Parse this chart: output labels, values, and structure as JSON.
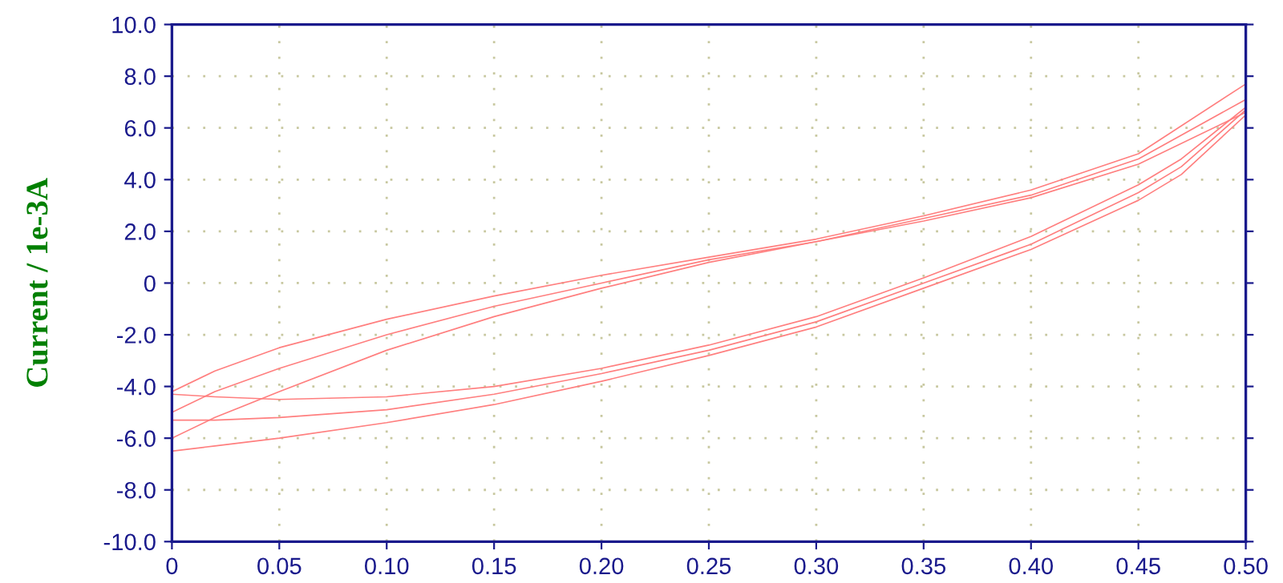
{
  "chart_data": {
    "type": "line",
    "ylabel": "Current / 1e-3A",
    "xlim": [
      0,
      0.5
    ],
    "ylim": [
      -10,
      10
    ],
    "xticks": [
      0,
      {
        "value": 0.05,
        "label": "0.05"
      },
      {
        "value": 0.1,
        "label": "0.10"
      },
      {
        "value": 0.15,
        "label": "0.15"
      },
      {
        "value": 0.2,
        "label": "0.20"
      },
      {
        "value": 0.25,
        "label": "0.25"
      },
      {
        "value": 0.3,
        "label": "0.30"
      },
      {
        "value": 0.35,
        "label": "0.35"
      },
      {
        "value": 0.4,
        "label": "0.40"
      },
      {
        "value": 0.45,
        "label": "0.45"
      },
      {
        "value": 0.5,
        "label": "0.50"
      }
    ],
    "yticks": [
      {
        "value": -10,
        "label": "-10.0"
      },
      {
        "value": -8,
        "label": "-8.0"
      },
      {
        "value": -6,
        "label": "-6.0"
      },
      {
        "value": -4,
        "label": "-4.0"
      },
      {
        "value": -2,
        "label": "-2.0"
      },
      0,
      {
        "value": 2,
        "label": "2.0"
      },
      {
        "value": 4,
        "label": "4.0"
      },
      {
        "value": 6,
        "label": "6.0"
      },
      {
        "value": 8,
        "label": "8.0"
      },
      {
        "value": 10,
        "label": "10.0"
      }
    ],
    "grid": true,
    "marker": "none",
    "line_style": "solid",
    "series": [
      {
        "color": "#ff7f7f",
        "x": [
          0,
          0.02,
          0.05,
          0.1,
          0.15,
          0.2,
          0.25,
          0.3,
          0.35,
          0.4,
          0.45,
          0.5,
          0.5,
          0.47,
          0.45,
          0.4,
          0.35,
          0.3,
          0.25,
          0.2,
          0.15,
          0.1,
          0.05,
          0.02,
          0
        ],
        "values": [
          -4.2,
          -3.4,
          -2.5,
          -1.4,
          -0.5,
          0.3,
          1.0,
          1.7,
          2.6,
          3.6,
          5.0,
          7.7,
          6.8,
          4.8,
          3.8,
          1.8,
          0.2,
          -1.3,
          -2.4,
          -3.3,
          -4.0,
          -4.4,
          -4.5,
          -4.4,
          -4.3
        ]
      },
      {
        "color": "#ff7f7f",
        "x": [
          0,
          0.02,
          0.05,
          0.1,
          0.15,
          0.2,
          0.25,
          0.3,
          0.35,
          0.4,
          0.45,
          0.5,
          0.5,
          0.47,
          0.45,
          0.4,
          0.35,
          0.3,
          0.25,
          0.2,
          0.15,
          0.1,
          0.05,
          0.02,
          0
        ],
        "values": [
          -5.0,
          -4.2,
          -3.3,
          -2.0,
          -0.9,
          0.0,
          0.9,
          1.6,
          2.5,
          3.4,
          4.8,
          7.1,
          6.7,
          4.5,
          3.5,
          1.5,
          0.0,
          -1.5,
          -2.6,
          -3.5,
          -4.3,
          -4.9,
          -5.2,
          -5.3,
          -5.3
        ]
      },
      {
        "color": "#ff7f7f",
        "x": [
          0,
          0.02,
          0.05,
          0.1,
          0.15,
          0.2,
          0.25,
          0.3,
          0.35,
          0.4,
          0.45,
          0.5,
          0.5,
          0.47,
          0.45,
          0.4,
          0.35,
          0.3,
          0.25,
          0.2,
          0.15,
          0.1,
          0.05,
          0.02,
          0
        ],
        "values": [
          -6.0,
          -5.2,
          -4.2,
          -2.6,
          -1.3,
          -0.2,
          0.8,
          1.6,
          2.4,
          3.3,
          4.6,
          6.6,
          6.5,
          4.2,
          3.2,
          1.3,
          -0.2,
          -1.7,
          -2.8,
          -3.8,
          -4.7,
          -5.4,
          -6.0,
          -6.3,
          -6.5
        ]
      }
    ]
  }
}
